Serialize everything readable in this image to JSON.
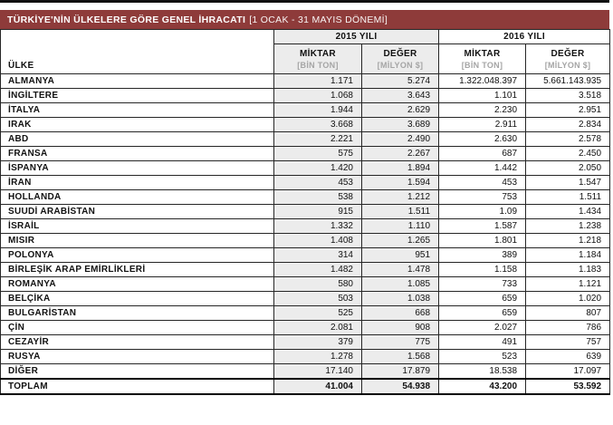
{
  "title_bar": {
    "title_bold": "TÜRKİYE'NİN ÜLKELERE GÖRE GENEL İHRACATI",
    "title_note": "[1 OCAK - 31 MAYIS DÖNEMİ]"
  },
  "colors": {
    "title_bar_bg": "#8e3b3a",
    "title_bar_text": "#ffffff",
    "year_2015_column_bg": "#ececec",
    "table_border": "#262626",
    "subheader_note_text": "#a5a5a5"
  },
  "table": {
    "country_header": "ÜLKE",
    "year_groups": [
      {
        "label": "2015 YILI",
        "sub": [
          {
            "main": "MİKTAR",
            "note": "[BİN TON]"
          },
          {
            "main": "DEĞER",
            "note": "[MİLYON $]"
          }
        ]
      },
      {
        "label": "2016 YILI",
        "sub": [
          {
            "main": "MİKTAR",
            "note": "[BİN TON]"
          },
          {
            "main": "DEĞER",
            "note": "[MİLYON $]"
          }
        ]
      }
    ],
    "rows": [
      {
        "country": "ALMANYA",
        "values": [
          "1.171",
          "5.274",
          "1.322.048.397",
          "5.661.143.935"
        ]
      },
      {
        "country": "İNGİLTERE",
        "values": [
          "1.068",
          "3.643",
          "1.101",
          "3.518"
        ]
      },
      {
        "country": "İTALYA",
        "values": [
          "1.944",
          "2.629",
          "2.230",
          "2.951"
        ]
      },
      {
        "country": "IRAK",
        "values": [
          "3.668",
          "3.689",
          "2.911",
          "2.834"
        ]
      },
      {
        "country": "ABD",
        "values": [
          "2.221",
          "2.490",
          "2.630",
          "2.578"
        ]
      },
      {
        "country": "FRANSA",
        "values": [
          "575",
          "2.267",
          "687",
          "2.450"
        ]
      },
      {
        "country": "İSPANYA",
        "values": [
          "1.420",
          "1.894",
          "1.442",
          "2.050"
        ]
      },
      {
        "country": "İRAN",
        "values": [
          "453",
          "1.594",
          "453",
          "1.547"
        ]
      },
      {
        "country": "HOLLANDA",
        "values": [
          "538",
          "1.212",
          "753",
          "1.511"
        ]
      },
      {
        "country": "SUUDİ ARABİSTAN",
        "values": [
          "915",
          "1.511",
          "1.09",
          "1.434"
        ]
      },
      {
        "country": "İSRAİL",
        "values": [
          "1.332",
          "1.110",
          "1.587",
          "1.238"
        ]
      },
      {
        "country": "MISIR",
        "values": [
          "1.408",
          "1.265",
          "1.801",
          "1.218"
        ]
      },
      {
        "country": "POLONYA",
        "values": [
          "314",
          "951",
          "389",
          "1.184"
        ]
      },
      {
        "country": "BİRLEŞİK ARAP EMİRLİKLERİ",
        "values": [
          "1.482",
          "1.478",
          "1.158",
          "1.183"
        ]
      },
      {
        "country": "ROMANYA",
        "values": [
          "580",
          "1.085",
          "733",
          "1.121"
        ]
      },
      {
        "country": "BELÇİKA",
        "values": [
          "503",
          "1.038",
          "659",
          "1.020"
        ]
      },
      {
        "country": "BULGARİSTAN",
        "values": [
          "525",
          "668",
          "659",
          "807"
        ]
      },
      {
        "country": "ÇİN",
        "values": [
          "2.081",
          "908",
          "2.027",
          "786"
        ]
      },
      {
        "country": "CEZAYİR",
        "values": [
          "379",
          "775",
          "491",
          "757"
        ]
      },
      {
        "country": "RUSYA",
        "values": [
          "1.278",
          "1.568",
          "523",
          "639"
        ]
      },
      {
        "country": "DİĞER",
        "values": [
          "17.140",
          "17.879",
          "18.538",
          "17.097"
        ]
      }
    ],
    "total_row": {
      "label": "TOPLAM",
      "values": [
        "41.004",
        "54.938",
        "43.200",
        "53.592"
      ]
    }
  }
}
